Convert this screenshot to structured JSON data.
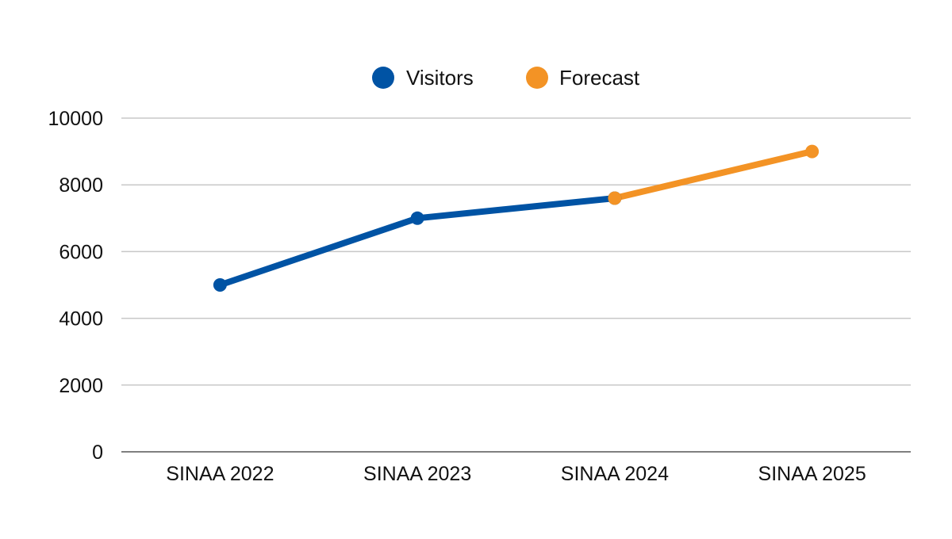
{
  "chart_data": {
    "type": "line",
    "title": "",
    "xlabel": "",
    "ylabel": "",
    "categories": [
      "SINAA 2022",
      "SINAA 2023",
      "SINAA 2024",
      "SINAA 2025"
    ],
    "series": [
      {
        "name": "Visitors",
        "color": "#0053a4",
        "values": [
          5000,
          7000,
          7600,
          null
        ]
      },
      {
        "name": "Forecast",
        "color": "#f39325",
        "values": [
          null,
          null,
          7600,
          9000
        ]
      }
    ],
    "ylim": [
      0,
      10000
    ],
    "yticks": [
      "0",
      "2000",
      "4000",
      "6000",
      "8000",
      "10000"
    ],
    "grid": true,
    "legend": "top-center"
  }
}
